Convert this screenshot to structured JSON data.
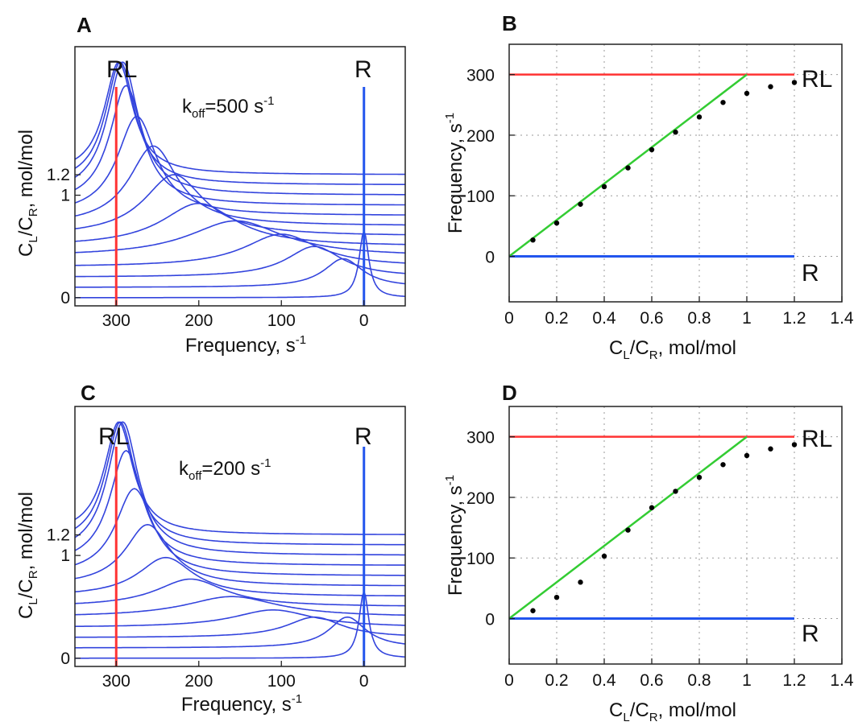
{
  "colors": {
    "rl": "#ff3333",
    "r": "#2255ee",
    "spectra": "#3344dd",
    "fit": "#33cc33",
    "points": "#000000",
    "grid": "#999999"
  },
  "chart_data": [
    {
      "panel": "A",
      "type": "line",
      "koff_label": "k",
      "koff_sub": "off",
      "koff_value": "=500 s",
      "koff_sup": "-1",
      "rl_label": "RL",
      "r_label": "R",
      "rl_position": 300,
      "r_position": 0,
      "xlabel": "Frequency, s",
      "xlabel_sup": "-1",
      "ylabel_main": "C",
      "ylabel_sub1": "L",
      "ylabel_mid": "/C",
      "ylabel_sub2": "R",
      "ylabel_end": ", mol/mol",
      "xlim": [
        350,
        -50
      ],
      "x_reversed": true,
      "xticks": [
        300,
        200,
        100,
        0
      ],
      "yticks": [
        0,
        1,
        1.2
      ],
      "ytick_labels": [
        "0",
        "1",
        "1.2"
      ],
      "ylim": [
        -0.08,
        2.45
      ],
      "series": {
        "offsets": [
          0,
          0.1,
          0.2,
          0.3,
          0.4,
          0.5,
          0.6,
          0.7,
          0.8,
          0.9,
          1.0,
          1.1,
          1.2
        ],
        "peak_positions": [
          0,
          25,
          60,
          100,
          155,
          200,
          230,
          255,
          275,
          288,
          292,
          295,
          297
        ],
        "peak_heights": [
          0.65,
          0.28,
          0.3,
          0.32,
          0.35,
          0.42,
          0.6,
          0.78,
          0.97,
          1.17,
          1.3,
          1.2,
          1.1
        ]
      }
    },
    {
      "panel": "B",
      "type": "scatter",
      "rl_label": "RL",
      "r_label": "R",
      "rl_level": 300,
      "r_level": 0,
      "xlabel_main": "C",
      "xlabel_sub1": "L",
      "xlabel_mid": "/C",
      "xlabel_sub2": "R",
      "xlabel_end": ", mol/mol",
      "ylabel": "Frequency, s",
      "ylabel_sup": "-1",
      "xlim": [
        0,
        1.4
      ],
      "ylim": [
        -75,
        350
      ],
      "xticks": [
        0,
        0.2,
        0.4,
        0.6,
        0.8,
        1,
        1.2,
        1.4
      ],
      "xtick_labels": [
        "0",
        "0.2",
        "0.4",
        "0.6",
        "0.8",
        "1",
        "1.2",
        "1.4"
      ],
      "yticks": [
        0,
        100,
        200,
        300
      ],
      "ytick_labels": [
        "0",
        "100",
        "200",
        "300"
      ],
      "grid": true,
      "line_end": 1.2,
      "fit_line": [
        [
          0,
          0
        ],
        [
          1,
          300
        ]
      ],
      "points": {
        "x": [
          0.1,
          0.2,
          0.3,
          0.4,
          0.5,
          0.6,
          0.7,
          0.8,
          0.9,
          1.0,
          1.1,
          1.2
        ],
        "y": [
          27,
          55,
          86,
          115,
          146,
          176,
          205,
          230,
          254,
          269,
          280,
          287
        ]
      }
    },
    {
      "panel": "C",
      "type": "line",
      "koff_label": "k",
      "koff_sub": "off",
      "koff_value": "=200 s",
      "koff_sup": "-1",
      "rl_label": "RL",
      "r_label": "R",
      "rl_position": 300,
      "r_position": 0,
      "xlabel": "Frequency, s",
      "xlabel_sup": "-1",
      "ylabel_main": "C",
      "ylabel_sub1": "L",
      "ylabel_mid": "/C",
      "ylabel_sub2": "R",
      "ylabel_end": ", mol/mol",
      "xlim": [
        350,
        -50
      ],
      "x_reversed": true,
      "xticks": [
        300,
        200,
        100,
        0
      ],
      "yticks": [
        0,
        1,
        1.2
      ],
      "ytick_labels": [
        "0",
        "1",
        "1.2"
      ],
      "ylim": [
        -0.08,
        2.45
      ],
      "series": {
        "offsets": [
          0,
          0.1,
          0.2,
          0.3,
          0.4,
          0.5,
          0.6,
          0.7,
          0.8,
          0.9,
          1.0,
          1.1,
          1.2
        ],
        "peak_positions": [
          0,
          20,
          60,
          110,
          160,
          210,
          240,
          262,
          278,
          288,
          292,
          295,
          297
        ],
        "peak_heights": [
          0.65,
          0.3,
          0.2,
          0.17,
          0.2,
          0.27,
          0.38,
          0.6,
          0.85,
          1.12,
          1.3,
          1.2,
          1.1
        ]
      }
    },
    {
      "panel": "D",
      "type": "scatter",
      "rl_label": "RL",
      "r_label": "R",
      "rl_level": 300,
      "r_level": 0,
      "xlabel_main": "C",
      "xlabel_sub1": "L",
      "xlabel_mid": "/C",
      "xlabel_sub2": "R",
      "xlabel_end": ", mol/mol",
      "ylabel": "Frequency, s",
      "ylabel_sup": "-1",
      "xlim": [
        0,
        1.4
      ],
      "ylim": [
        -75,
        350
      ],
      "xticks": [
        0,
        0.2,
        0.4,
        0.6,
        0.8,
        1,
        1.2,
        1.4
      ],
      "xtick_labels": [
        "0",
        "0.2",
        "0.4",
        "0.6",
        "0.8",
        "1",
        "1.2",
        "1.4"
      ],
      "yticks": [
        0,
        100,
        200,
        300
      ],
      "ytick_labels": [
        "0",
        "100",
        "200",
        "300"
      ],
      "grid": true,
      "line_end": 1.2,
      "fit_line": [
        [
          0,
          0
        ],
        [
          1,
          300
        ]
      ],
      "points": {
        "x": [
          0.1,
          0.2,
          0.3,
          0.4,
          0.5,
          0.6,
          0.7,
          0.8,
          0.9,
          1.0,
          1.1,
          1.2
        ],
        "y": [
          13,
          35,
          60,
          103,
          146,
          183,
          210,
          233,
          254,
          269,
          280,
          287
        ]
      }
    }
  ]
}
